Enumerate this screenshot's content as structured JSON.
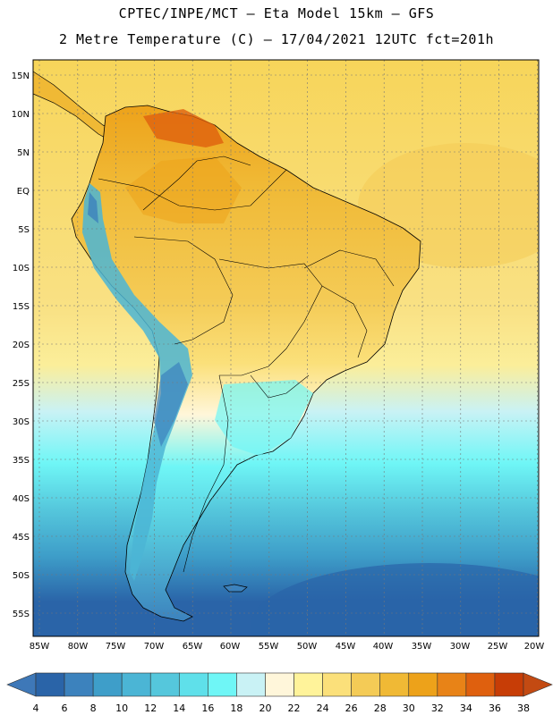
{
  "title_line1": "CPTEC/INPE/MCT –  Eta Model 15km – GFS",
  "title_line2": "2 Metre Temperature (C) – 17/04/2021 12UTC fct=201h",
  "lat_labels": [
    "15N",
    "10N",
    "5N",
    "EQ",
    "5S",
    "10S",
    "15S",
    "20S",
    "25S",
    "30S",
    "35S",
    "40S",
    "45S",
    "50S",
    "55S"
  ],
  "lon_labels": [
    "85W",
    "80W",
    "75W",
    "70W",
    "65W",
    "60W",
    "55W",
    "50W",
    "45W",
    "40W",
    "35W",
    "30W",
    "25W",
    "20W"
  ],
  "colorbar": {
    "labels": [
      "4",
      "6",
      "8",
      "10",
      "12",
      "14",
      "16",
      "18",
      "20",
      "22",
      "24",
      "26",
      "28",
      "30",
      "32",
      "34",
      "36",
      "38"
    ],
    "colors": [
      "#2a64a8",
      "#3c82bd",
      "#3e9ec9",
      "#4bb5d5",
      "#55c7dc",
      "#5fe0ea",
      "#6ff6f6",
      "#c9f2f5",
      "#fff6da",
      "#fff39a",
      "#fbe07a",
      "#f4cb56",
      "#f0b935",
      "#eda21a",
      "#e88317",
      "#df600e",
      "#c73d06"
    ],
    "under_color": "#3e78b8",
    "over_color": "#c34a12"
  }
}
